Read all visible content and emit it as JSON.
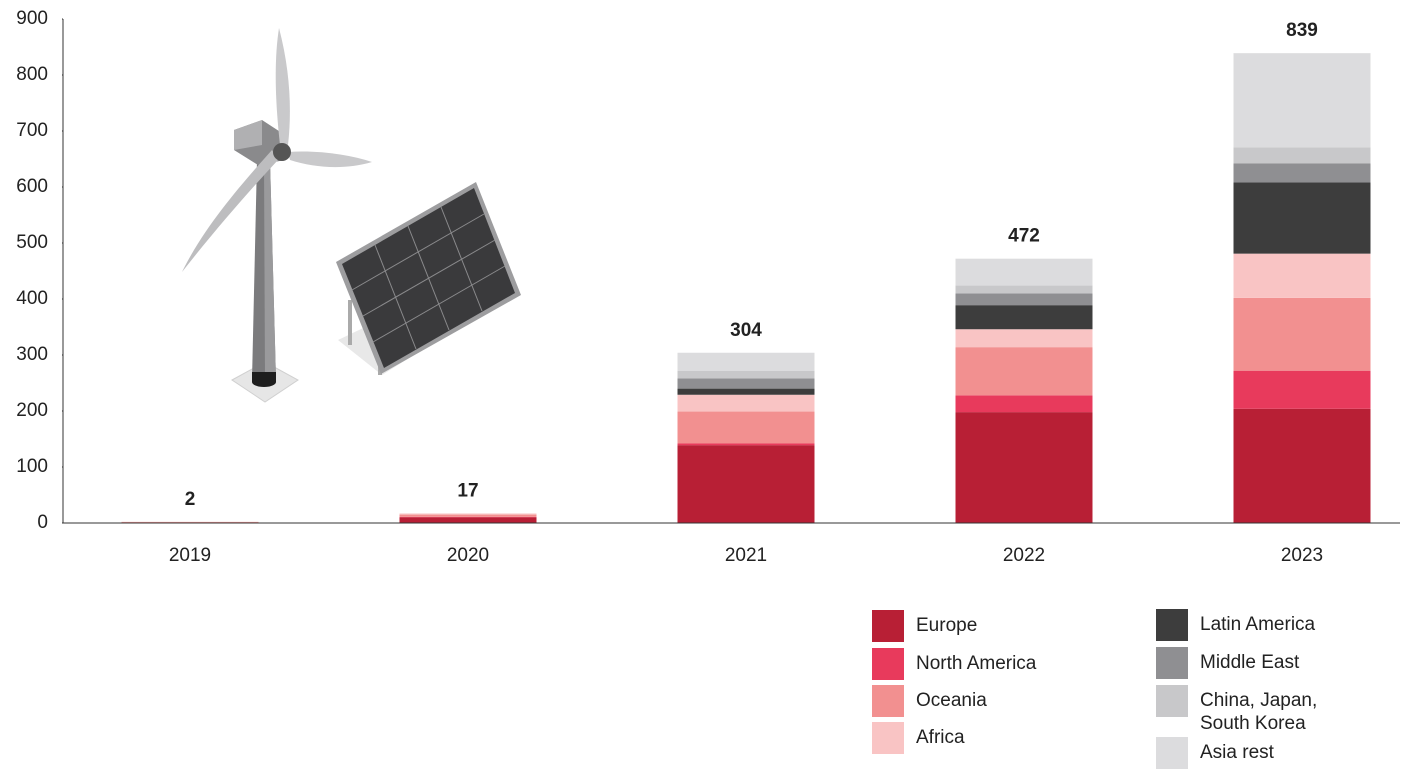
{
  "chart_data": {
    "type": "stacked_bar",
    "categories": [
      "2019",
      "2020",
      "2021",
      "2022",
      "2023"
    ],
    "totals": [
      2,
      17,
      304,
      472,
      839
    ],
    "series": [
      {
        "name": "Europe",
        "color": "#b81f35",
        "values": [
          1,
          10,
          139,
          198,
          204
        ]
      },
      {
        "name": "North America",
        "color": "#e83a5c",
        "values": [
          0,
          1,
          3,
          30,
          68
        ]
      },
      {
        "name": "Oceania",
        "color": "#f29090",
        "values": [
          1,
          4,
          57,
          86,
          130
        ]
      },
      {
        "name": "Africa",
        "color": "#f9c4c4",
        "values": [
          0,
          2,
          30,
          32,
          79
        ]
      },
      {
        "name": "Latin America",
        "color": "#3d3d3d",
        "values": [
          0,
          0,
          11,
          43,
          127
        ]
      },
      {
        "name": "Middle East",
        "color": "#8f8f92",
        "values": [
          0,
          0,
          18,
          21,
          34
        ]
      },
      {
        "name": "China, Japan, South Korea",
        "color": "#c8c8ca",
        "values": [
          0,
          0,
          14,
          14,
          29
        ]
      },
      {
        "name": "Asia rest",
        "color": "#dcdcde",
        "values": [
          0,
          0,
          32,
          48,
          168
        ]
      }
    ],
    "ylim": [
      0,
      900
    ],
    "yticks": [
      0,
      100,
      200,
      300,
      400,
      500,
      600,
      700,
      800,
      900
    ]
  }
}
